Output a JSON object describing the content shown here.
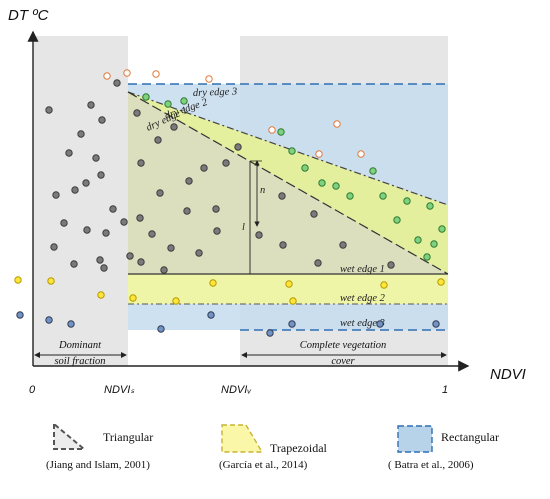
{
  "axes": {
    "y_title": "DT ºC",
    "x_title": "NDVI",
    "x_ticks": [
      "0",
      "NDVIₛ",
      "NDVIᵥ",
      "1"
    ]
  },
  "edges": {
    "dry_edge_3": "dry edge 3",
    "dry_edge_2": "dry edge 2",
    "dry_edge_1": "dry edge 1",
    "wet_edge_1": "wet edge 1",
    "wet_edge_2": "wet edge 2",
    "wet_edge_3": "wet edge 3"
  },
  "annotations": {
    "n_label": "n",
    "l_label": "l"
  },
  "regions": {
    "soil": {
      "line1": "Dominant",
      "line2": "soil fraction"
    },
    "vegetation": {
      "line1": "Complete vegetation",
      "line2": "cover"
    }
  },
  "legend": [
    {
      "name": "Triangular",
      "citation": "(Jiang and Islam, 2001)",
      "color": "#555555"
    },
    {
      "name": "Trapezoidal",
      "citation": "(García et al., 2014)",
      "color": "#f5f06a"
    },
    {
      "name": "Rectangular",
      "citation": "( Batra et al., 2006)",
      "color": "#a9cbe6"
    }
  ],
  "colors": {
    "grey_point": "#7a7a7a",
    "green_point": "#7fd07f",
    "yellow_point": "#ffe53a",
    "blue_point": "#6f93c2",
    "orange_point_stroke": "#e07a3a",
    "triangle_fill": "#d8d8c4",
    "trapezoid_fill": "#e5f28a",
    "rectangle_fill": "#bfd8ea"
  }
}
